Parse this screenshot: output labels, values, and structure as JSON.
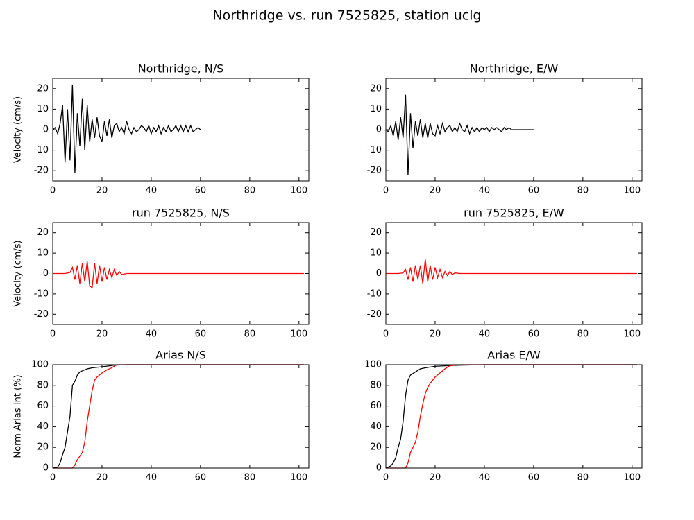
{
  "title": "Northridge vs. run 7525825, station uclg",
  "chart_data": [
    {
      "type": "line",
      "title": "Northridge, N/S",
      "ylabel": "Velocity (cm/s)",
      "xlim": [
        0,
        104
      ],
      "ylim": [
        -25,
        25
      ],
      "xticks": [
        0,
        20,
        40,
        60,
        80,
        100
      ],
      "yticks": [
        -20,
        -10,
        0,
        10,
        20
      ],
      "series": [
        {
          "color": "#000000",
          "x": [
            0,
            1,
            2,
            3,
            4,
            5,
            6,
            7,
            8,
            9,
            10,
            11,
            12,
            13,
            14,
            15,
            16,
            17,
            18,
            19,
            20,
            21,
            22,
            23,
            24,
            25,
            26,
            27,
            28,
            29,
            30,
            31,
            32,
            33,
            34,
            35,
            36,
            37,
            38,
            39,
            40,
            41,
            42,
            43,
            44,
            45,
            46,
            47,
            48,
            49,
            50,
            51,
            52,
            53,
            54,
            55,
            56,
            57,
            58,
            59,
            60
          ],
          "values": [
            0,
            1,
            -2,
            3,
            12,
            -16,
            10,
            -15,
            22,
            -21,
            8,
            -8,
            15,
            -10,
            12,
            -6,
            5,
            -4,
            6,
            -3,
            -6,
            4,
            -3,
            5,
            -4,
            2,
            3,
            -1,
            1,
            -2,
            4,
            0,
            -2,
            1,
            -1,
            0,
            2,
            1,
            -1,
            2,
            -2,
            1,
            -1,
            2,
            -2,
            1,
            -1,
            2,
            -1,
            0,
            2,
            -1,
            2,
            -1,
            2,
            -1,
            2,
            -1,
            0,
            1,
            0
          ]
        }
      ]
    },
    {
      "type": "line",
      "title": "Northridge, E/W",
      "xlim": [
        0,
        104
      ],
      "ylim": [
        -25,
        25
      ],
      "xticks": [
        0,
        20,
        40,
        60,
        80,
        100
      ],
      "yticks": [
        -20,
        -10,
        0,
        10,
        20
      ],
      "series": [
        {
          "color": "#000000",
          "x": [
            0,
            1,
            2,
            3,
            4,
            5,
            6,
            7,
            8,
            9,
            10,
            11,
            12,
            13,
            14,
            15,
            16,
            17,
            18,
            19,
            20,
            21,
            22,
            23,
            24,
            25,
            26,
            27,
            28,
            29,
            30,
            31,
            32,
            33,
            34,
            35,
            36,
            37,
            38,
            39,
            40,
            41,
            42,
            43,
            44,
            45,
            46,
            47,
            48,
            49,
            50,
            51,
            52,
            53,
            54,
            55,
            56,
            57,
            58,
            59,
            60
          ],
          "values": [
            0,
            -1,
            2,
            -3,
            4,
            -5,
            6,
            -4,
            17,
            -22,
            8,
            -9,
            4,
            -3,
            5,
            -4,
            3,
            -4,
            3,
            -2,
            -3,
            2,
            -2,
            3,
            -1,
            1,
            2,
            -1,
            1,
            -1,
            3,
            0,
            -1,
            2,
            -2,
            1,
            -1,
            1,
            -1,
            1,
            0,
            1,
            -1,
            1,
            0,
            1,
            0,
            -1,
            1,
            0,
            1,
            0,
            0,
            0,
            0,
            0,
            0,
            0,
            0,
            0,
            0
          ]
        }
      ]
    },
    {
      "type": "line",
      "title": "run 7525825, N/S",
      "ylabel": "Velocity (cm/s)",
      "xlim": [
        0,
        104
      ],
      "ylim": [
        -25,
        25
      ],
      "xticks": [
        0,
        20,
        40,
        60,
        80,
        100
      ],
      "yticks": [
        -20,
        -10,
        0,
        10,
        20
      ],
      "series": [
        {
          "color": "#ff0000",
          "x": [
            0,
            5,
            7,
            8,
            9,
            10,
            11,
            12,
            13,
            14,
            15,
            16,
            17,
            18,
            19,
            20,
            21,
            22,
            23,
            24,
            25,
            26,
            27,
            28,
            30,
            40,
            102
          ],
          "values": [
            0,
            0,
            0.5,
            3,
            -3,
            4,
            -5,
            5,
            -4,
            6,
            -6,
            -7,
            5,
            -5,
            4,
            -4,
            3,
            -3,
            2,
            -2,
            2,
            -1,
            1,
            -0.5,
            0,
            0,
            0
          ]
        }
      ]
    },
    {
      "type": "line",
      "title": "run 7525825, E/W",
      "xlim": [
        0,
        104
      ],
      "ylim": [
        -25,
        25
      ],
      "xticks": [
        0,
        20,
        40,
        60,
        80,
        100
      ],
      "yticks": [
        -20,
        -10,
        0,
        10,
        20
      ],
      "series": [
        {
          "color": "#ff0000",
          "x": [
            0,
            5,
            7,
            8,
            9,
            10,
            11,
            12,
            13,
            14,
            15,
            16,
            17,
            18,
            19,
            20,
            21,
            22,
            23,
            24,
            25,
            26,
            27,
            28,
            30,
            40,
            102
          ],
          "values": [
            0,
            0,
            0.3,
            2,
            -3,
            3,
            -4,
            4,
            -3,
            4,
            -5,
            7,
            -4,
            4,
            -3,
            3,
            -2,
            2,
            -2,
            1,
            -1,
            1,
            -0.5,
            0.3,
            0,
            0,
            0
          ]
        }
      ]
    },
    {
      "type": "line",
      "title": "Arias N/S",
      "ylabel": "Norm Arias Int (%)",
      "xlim": [
        0,
        104
      ],
      "ylim": [
        0,
        100
      ],
      "xticks": [
        0,
        20,
        40,
        60,
        80,
        100
      ],
      "yticks": [
        0,
        20,
        40,
        60,
        80,
        100
      ],
      "series": [
        {
          "color": "#000000",
          "x": [
            0,
            2,
            3,
            4,
            5,
            6,
            7,
            8,
            9,
            10,
            11,
            12,
            14,
            16,
            20,
            25,
            30,
            102
          ],
          "values": [
            0,
            1,
            5,
            13,
            20,
            35,
            50,
            80,
            84,
            90,
            93,
            94,
            96,
            97,
            98,
            99.5,
            100,
            100
          ]
        },
        {
          "color": "#ff0000",
          "x": [
            0,
            8,
            9,
            10,
            12,
            13,
            14,
            15,
            16,
            17,
            18,
            20,
            22,
            24,
            26,
            102
          ],
          "values": [
            0,
            0,
            3,
            8,
            15,
            25,
            45,
            60,
            75,
            85,
            88,
            92,
            95,
            97,
            100,
            100
          ]
        }
      ]
    },
    {
      "type": "line",
      "title": "Arias E/W",
      "xlim": [
        0,
        104
      ],
      "ylim": [
        0,
        100
      ],
      "xticks": [
        0,
        20,
        40,
        60,
        80,
        100
      ],
      "yticks": [
        0,
        20,
        40,
        60,
        80,
        100
      ],
      "series": [
        {
          "color": "#000000",
          "x": [
            0,
            2,
            3,
            4,
            5,
            6,
            7,
            8,
            9,
            10,
            12,
            14,
            16,
            20,
            30,
            40,
            102
          ],
          "values": [
            0,
            2,
            5,
            10,
            20,
            28,
            45,
            70,
            85,
            90,
            93,
            96,
            97,
            98.5,
            99.5,
            100,
            100
          ]
        },
        {
          "color": "#ff0000",
          "x": [
            0,
            8,
            9,
            10,
            11,
            12,
            13,
            14,
            15,
            16,
            17,
            18,
            20,
            22,
            24,
            26,
            30,
            102
          ],
          "values": [
            0,
            0,
            5,
            15,
            20,
            25,
            35,
            50,
            62,
            72,
            78,
            82,
            88,
            92,
            96,
            99,
            100,
            100
          ]
        }
      ]
    }
  ]
}
